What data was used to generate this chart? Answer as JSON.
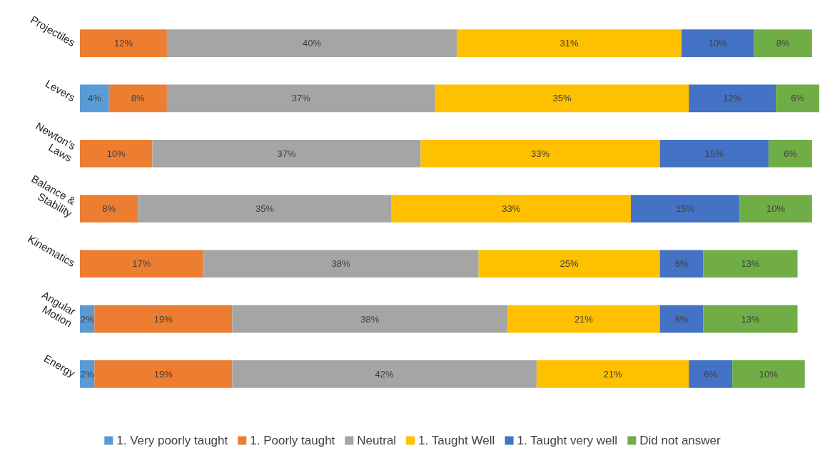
{
  "chart_data": {
    "type": "bar",
    "orientation": "horizontal",
    "stacked": true,
    "legend": "bottom",
    "xlim": [
      0,
      102
    ],
    "tick_labels": "y",
    "categories": [
      "Projectiles",
      "Levers",
      "Newton’s Laws",
      "Balance & Stability",
      "Kinematics",
      "Angular Motion",
      "Energy"
    ],
    "series": [
      {
        "name": "1. Very poorly taught",
        "color": "#5b9bd5",
        "values": [
          null,
          4,
          null,
          null,
          null,
          2,
          2
        ],
        "value_labels": [
          null,
          "4%",
          null,
          null,
          null,
          "2%",
          "2%"
        ]
      },
      {
        "name": "1. Poorly taught",
        "color": "#ed7d31",
        "values": [
          12,
          8,
          10,
          8,
          17,
          19,
          19
        ],
        "value_labels": [
          "12%",
          "8%",
          "10%",
          "8%",
          "17%",
          "19%",
          "19%"
        ]
      },
      {
        "name": "Neutral",
        "color": "#a5a5a5",
        "values": [
          40,
          37,
          37,
          35,
          38,
          38,
          42
        ],
        "value_labels": [
          "40%",
          "37%",
          "37%",
          "35%",
          "38%",
          "38%",
          "42%"
        ]
      },
      {
        "name": "1. Taught Well",
        "color": "#ffc000",
        "values": [
          31,
          35,
          33,
          33,
          25,
          21,
          21
        ],
        "value_labels": [
          "31%",
          "35%",
          "33%",
          "33%",
          "25%",
          "21%",
          "21%"
        ]
      },
      {
        "name": "1. Taught very well",
        "color": "#4472c4",
        "values": [
          10,
          12,
          15,
          15,
          6,
          6,
          6
        ],
        "value_labels": [
          "10%",
          "12%",
          "15%",
          "15%",
          "6%",
          "6%",
          "6%"
        ]
      },
      {
        "name": "Did not answer",
        "color": "#70ad47",
        "values": [
          8,
          6,
          6,
          10,
          13,
          13,
          10
        ],
        "value_labels": [
          "8%",
          "6%",
          "6%",
          "10%",
          "13%",
          "13%",
          "10%"
        ]
      }
    ]
  }
}
